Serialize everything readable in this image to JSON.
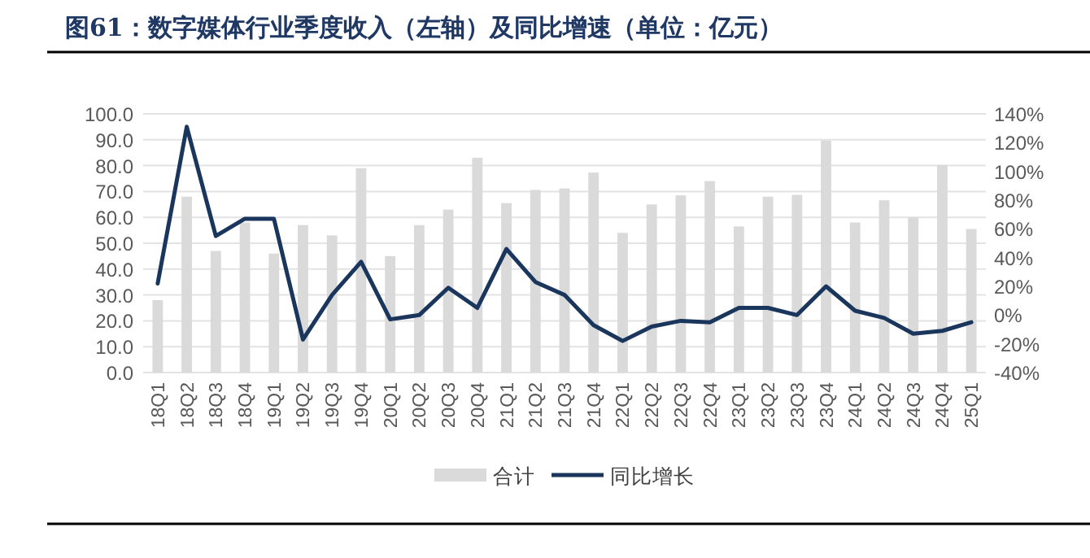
{
  "chart_data": {
    "type": "bar",
    "title": "图61：数字媒体行业季度收入（左轴）及同比增速（单位：亿元）",
    "categories": [
      "18Q1",
      "18Q2",
      "18Q3",
      "18Q4",
      "19Q1",
      "19Q2",
      "19Q3",
      "19Q4",
      "20Q1",
      "20Q2",
      "20Q3",
      "20Q4",
      "21Q1",
      "21Q2",
      "21Q3",
      "21Q4",
      "22Q1",
      "22Q2",
      "22Q3",
      "22Q4",
      "23Q1",
      "23Q2",
      "23Q3",
      "23Q4",
      "24Q1",
      "24Q2",
      "24Q3",
      "24Q4",
      "25Q1"
    ],
    "series": [
      {
        "name": "合计",
        "color": "#dadada",
        "values": [
          28,
          68,
          47,
          58,
          46,
          57,
          53,
          79,
          45,
          57,
          63,
          83,
          65.5,
          70.6,
          71.2,
          77.3,
          54,
          65,
          68.5,
          74,
          56.5,
          68,
          68.7,
          89.7,
          58,
          66.6,
          60,
          80.3,
          55.5
        ]
      },
      {
        "name": "同比增长",
        "type": "line",
        "axis": "y2",
        "color": "#1b365d",
        "values": [
          22,
          131,
          55,
          67,
          67,
          -17,
          14,
          37,
          -3,
          0,
          19,
          5,
          46,
          23,
          14,
          -7,
          -18,
          -8,
          -4,
          -5,
          5,
          5,
          0,
          20,
          3,
          -2,
          -13,
          -11,
          -5
        ]
      }
    ],
    "ylim": [
      0,
      100
    ],
    "yticks": [
      {
        "value": 0,
        "label": "0.0"
      },
      {
        "value": 10,
        "label": "10.0"
      },
      {
        "value": 20,
        "label": "20.0"
      },
      {
        "value": 30,
        "label": "30.0"
      },
      {
        "value": 40,
        "label": "40.0"
      },
      {
        "value": 50,
        "label": "50.0"
      },
      {
        "value": 60,
        "label": "60.0"
      },
      {
        "value": 70,
        "label": "70.0"
      },
      {
        "value": 80,
        "label": "80.0"
      },
      {
        "value": 90,
        "label": "90.0"
      },
      {
        "value": 100,
        "label": "100.0"
      }
    ],
    "y2lim": [
      -40,
      140
    ],
    "y2ticks": [
      {
        "value": -40,
        "label": "-40%"
      },
      {
        "value": -20,
        "label": "-20%"
      },
      {
        "value": 0,
        "label": "0%"
      },
      {
        "value": 20,
        "label": "20%"
      },
      {
        "value": 40,
        "label": "40%"
      },
      {
        "value": 60,
        "label": "60%"
      },
      {
        "value": 80,
        "label": "80%"
      },
      {
        "value": 100,
        "label": "100%"
      },
      {
        "value": 120,
        "label": "120%"
      },
      {
        "value": 140,
        "label": "140%"
      }
    ],
    "grid": "y",
    "legend": "bottom",
    "marker": "none",
    "line_style": "solid"
  }
}
